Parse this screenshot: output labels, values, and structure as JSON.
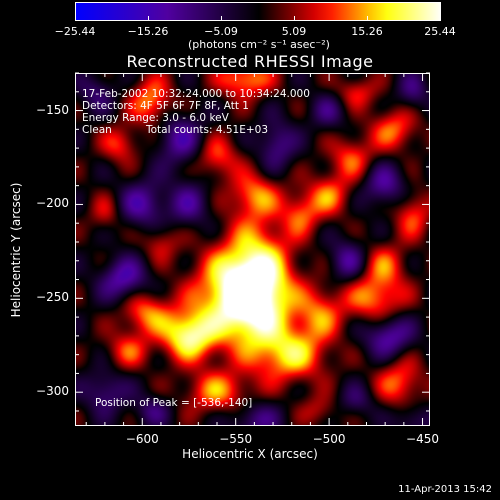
{
  "chart_data": {
    "type": "heatmap",
    "title": "Reconstructed RHESSI Image",
    "xlabel": "Heliocentric X (arcsec)",
    "ylabel": "Heliocentric Y (arcsec)",
    "xlim": [
      -636,
      -446
    ],
    "ylim": [
      -318,
      -130
    ],
    "x_ticks": [
      -600,
      -550,
      -500,
      -450
    ],
    "x_tick_labels": [
      "−600",
      "−550",
      "−500",
      "−450"
    ],
    "y_ticks": [
      -150,
      -200,
      -250,
      -300
    ],
    "y_tick_labels": [
      "−150",
      "−200",
      "−250",
      "−300"
    ],
    "colorbar": {
      "min": -25.44,
      "max": 25.44,
      "tick_values": [
        -25.44,
        -15.26,
        -5.09,
        5.09,
        15.26,
        25.44
      ],
      "tick_labels": [
        "−25.44",
        "−15.26",
        "−5.09",
        "5.09",
        "15.26",
        "25.44"
      ],
      "unit_label": "(photons cm⁻² s⁻¹ asec⁻²)"
    },
    "colormap": [
      "#0000ff",
      "#000000",
      "#ff0000",
      "#ffff00",
      "#ffffff"
    ],
    "peak": [
      -536,
      -140
    ],
    "annotations": {
      "time_range": "17-Feb-2002 10:32:24.000 to 10:34:24.000",
      "detectors": "Detectors: 4F 5F 6F 7F 8F, Att 1",
      "energy": "Energy Range: 3.0 - 6.0 keV",
      "clean": "Clean",
      "counts": "Total counts: 4.51E+03",
      "peak_text": "Position of Peak = [-536,-140]"
    },
    "blobs": [
      {
        "x": -548,
        "y": -248,
        "v": 25,
        "rx": 16,
        "ry": 16
      },
      {
        "x": -538,
        "y": -242,
        "v": 18,
        "rx": 12,
        "ry": 24
      },
      {
        "x": -575,
        "y": -270,
        "v": 22,
        "rx": 10,
        "ry": 9
      },
      {
        "x": -520,
        "y": -280,
        "v": 16,
        "rx": 13,
        "ry": 10
      },
      {
        "x": -505,
        "y": -258,
        "v": 12,
        "rx": 9,
        "ry": 10
      },
      {
        "x": -560,
        "y": -300,
        "v": 13,
        "rx": 12,
        "ry": 8
      },
      {
        "x": -598,
        "y": -258,
        "v": 13,
        "rx": 9,
        "ry": 8
      },
      {
        "x": -608,
        "y": -278,
        "v": 10,
        "rx": 8,
        "ry": 7
      },
      {
        "x": -475,
        "y": -250,
        "v": 14,
        "rx": 11,
        "ry": 9
      },
      {
        "x": -470,
        "y": -232,
        "v": 10,
        "rx": 8,
        "ry": 8
      },
      {
        "x": -462,
        "y": -295,
        "v": 12,
        "rx": 9,
        "ry": 9
      },
      {
        "x": -595,
        "y": -145,
        "v": 14,
        "rx": 8,
        "ry": 9
      },
      {
        "x": -612,
        "y": -168,
        "v": 10,
        "rx": 7,
        "ry": 7
      },
      {
        "x": -545,
        "y": -133,
        "v": 15,
        "rx": 10,
        "ry": 7
      },
      {
        "x": -560,
        "y": -175,
        "v": 11,
        "rx": 8,
        "ry": 8
      },
      {
        "x": -540,
        "y": -195,
        "v": 12,
        "rx": 9,
        "ry": 8
      },
      {
        "x": -515,
        "y": -205,
        "v": 11,
        "rx": 7,
        "ry": 8
      },
      {
        "x": -500,
        "y": -195,
        "v": 12,
        "rx": 8,
        "ry": 8
      },
      {
        "x": -488,
        "y": -175,
        "v": 11,
        "rx": 8,
        "ry": 8
      },
      {
        "x": -465,
        "y": -160,
        "v": 12,
        "rx": 9,
        "ry": 8
      },
      {
        "x": -455,
        "y": -205,
        "v": 11,
        "rx": 7,
        "ry": 9
      },
      {
        "x": -590,
        "y": -220,
        "v": 8,
        "rx": 7,
        "ry": 7
      },
      {
        "x": -620,
        "y": -205,
        "v": 7,
        "rx": 6,
        "ry": 7
      },
      {
        "x": -505,
        "y": -310,
        "v": 7,
        "rx": 7,
        "ry": 6
      },
      {
        "x": -485,
        "y": -140,
        "v": 9,
        "rx": 8,
        "ry": 6
      },
      {
        "x": -610,
        "y": -240,
        "v": -14,
        "rx": 9,
        "ry": 8
      },
      {
        "x": -600,
        "y": -200,
        "v": -12,
        "rx": 9,
        "ry": 9
      },
      {
        "x": -575,
        "y": -200,
        "v": -10,
        "rx": 8,
        "ry": 9
      },
      {
        "x": -620,
        "y": -300,
        "v": -10,
        "rx": 8,
        "ry": 8
      },
      {
        "x": -580,
        "y": -165,
        "v": -12,
        "rx": 9,
        "ry": 10
      },
      {
        "x": -528,
        "y": -168,
        "v": -11,
        "rx": 7,
        "ry": 9
      },
      {
        "x": -470,
        "y": -190,
        "v": -12,
        "rx": 8,
        "ry": 8
      },
      {
        "x": -468,
        "y": -270,
        "v": -14,
        "rx": 9,
        "ry": 8
      },
      {
        "x": -490,
        "y": -230,
        "v": -11,
        "rx": 7,
        "ry": 8
      },
      {
        "x": -540,
        "y": -315,
        "v": -10,
        "rx": 10,
        "ry": 7
      },
      {
        "x": -500,
        "y": -150,
        "v": -8,
        "rx": 7,
        "ry": 7
      },
      {
        "x": -625,
        "y": -140,
        "v": -8,
        "rx": 7,
        "ry": 7
      },
      {
        "x": -455,
        "y": -140,
        "v": -9,
        "rx": 6,
        "ry": 7
      },
      {
        "x": -455,
        "y": -315,
        "v": -8,
        "rx": 7,
        "ry": 6
      },
      {
        "x": -595,
        "y": -310,
        "v": -8,
        "rx": 7,
        "ry": 6
      },
      {
        "x": -485,
        "y": -305,
        "v": -7,
        "rx": 7,
        "ry": 6
      }
    ]
  },
  "footer": {
    "date": "11-Apr-2013 15:42"
  }
}
